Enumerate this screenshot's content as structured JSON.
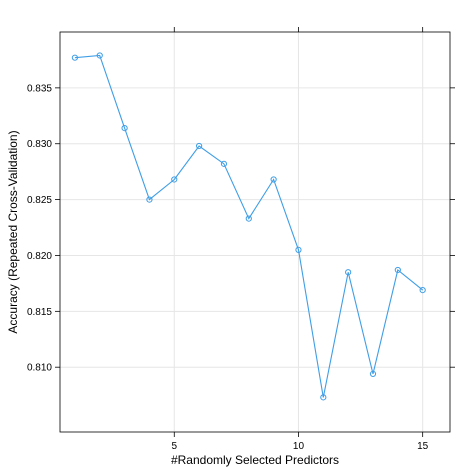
{
  "chart_data": {
    "type": "line",
    "title": "",
    "xlabel": "#Randomly Selected Predictors",
    "ylabel": "Accuracy (Repeated Cross-Validation)",
    "xlim": [
      0.4,
      16.1
    ],
    "ylim": [
      0.8042,
      0.84
    ],
    "x_ticks": [
      5,
      10,
      15
    ],
    "y_ticks": [
      0.81,
      0.815,
      0.82,
      0.825,
      0.83,
      0.835
    ],
    "y_tick_labels": [
      "0.810",
      "0.815",
      "0.820",
      "0.825",
      "0.830",
      "0.835"
    ],
    "grid": true,
    "series": [
      {
        "x": [
          1,
          2,
          3,
          4,
          5,
          6,
          7,
          8,
          9,
          10,
          11,
          12,
          13,
          14,
          15
        ],
        "values": [
          0.8377,
          0.8379,
          0.8314,
          0.825,
          0.8268,
          0.8298,
          0.8282,
          0.8233,
          0.8268,
          0.8205,
          0.8073,
          0.8185,
          0.8094,
          0.8187,
          0.8169
        ],
        "color": "#3f9ee6",
        "marker": "open-circle"
      }
    ]
  }
}
